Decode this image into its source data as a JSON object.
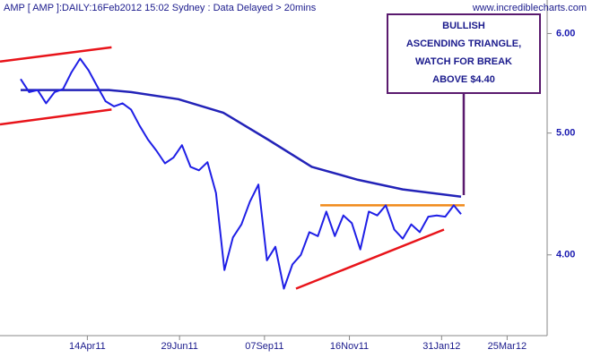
{
  "chart_data": {
    "type": "line",
    "title": "AMP [ AMP ]:DAILY:16Feb2012 15:02 Sydney : Data Delayed > 20mins",
    "watermark": "www.incrediblecharts.com",
    "log_scale": true,
    "xlim": [
      "2011-02-01",
      "2012-04-27"
    ],
    "xticks": [
      {
        "value": "2011-04-14",
        "label": "14Apr11"
      },
      {
        "value": "2011-06-29",
        "label": "29Jun11"
      },
      {
        "value": "2011-09-07",
        "label": "07Sep11"
      },
      {
        "value": "2011-11-16",
        "label": "16Nov11"
      },
      {
        "value": "2012-01-31",
        "label": "31Jan12"
      },
      {
        "value": "2012-03-25",
        "label": "25Mar12"
      }
    ],
    "ylim": [
      3.45,
      6.38
    ],
    "yticks": [
      {
        "value": 4,
        "label": "4.00"
      },
      {
        "value": 5,
        "label": "5.00"
      },
      {
        "value": 6,
        "label": "6.00"
      }
    ],
    "series": [
      {
        "color": "#1f1fe6",
        "width": 2,
        "x": [
          "2011-02-18",
          "2011-02-25",
          "2011-03-04",
          "2011-03-11",
          "2011-03-18",
          "2011-03-25",
          "2011-04-01",
          "2011-04-08",
          "2011-04-15",
          "2011-04-22",
          "2011-04-29",
          "2011-05-06",
          "2011-05-13",
          "2011-05-20",
          "2011-05-27",
          "2011-06-03",
          "2011-06-10",
          "2011-06-17",
          "2011-06-24",
          "2011-07-01",
          "2011-07-08",
          "2011-07-15",
          "2011-07-22",
          "2011-07-29",
          "2011-08-05",
          "2011-08-12",
          "2011-08-19",
          "2011-08-26",
          "2011-09-02",
          "2011-09-09",
          "2011-09-16",
          "2011-09-23",
          "2011-09-30",
          "2011-10-07",
          "2011-10-14",
          "2011-10-21",
          "2011-10-28",
          "2011-11-04",
          "2011-11-11",
          "2011-11-18",
          "2011-11-25",
          "2011-12-02",
          "2011-12-09",
          "2011-12-16",
          "2011-12-23",
          "2011-12-30",
          "2012-01-06",
          "2012-01-13",
          "2012-01-20",
          "2012-01-27",
          "2012-02-03",
          "2012-02-10",
          "2012-02-16"
        ],
        "values": [
          5.52,
          5.39,
          5.41,
          5.28,
          5.39,
          5.42,
          5.59,
          5.73,
          5.61,
          5.45,
          5.3,
          5.25,
          5.28,
          5.22,
          5.07,
          4.94,
          4.84,
          4.73,
          4.78,
          4.89,
          4.7,
          4.67,
          4.74,
          4.48,
          3.89,
          4.13,
          4.23,
          4.41,
          4.55,
          3.96,
          4.06,
          3.76,
          3.93,
          4.0,
          4.17,
          4.14,
          4.33,
          4.14,
          4.3,
          4.24,
          4.04,
          4.33,
          4.3,
          4.38,
          4.19,
          4.12,
          4.23,
          4.17,
          4.29,
          4.3,
          4.29,
          4.38,
          4.31
        ]
      },
      {
        "color": "#2323b8",
        "width": 2.5,
        "x": [
          "2011-02-18",
          "2011-04-15",
          "2011-05-02",
          "2011-05-20",
          "2011-06-28",
          "2011-08-04",
          "2011-09-10",
          "2011-10-16",
          "2011-11-23",
          "2011-12-30",
          "2012-02-16"
        ],
        "values": [
          5.41,
          5.41,
          5.41,
          5.39,
          5.32,
          5.19,
          4.94,
          4.7,
          4.59,
          4.51,
          4.45
        ]
      }
    ],
    "lines": [
      {
        "color": "#e8141a",
        "x": [
          "2011-02-01",
          "2011-05-04"
        ],
        "values": [
          5.7,
          5.85
        ]
      },
      {
        "color": "#e8141a",
        "x": [
          "2011-02-01",
          "2011-05-04"
        ],
        "values": [
          5.08,
          5.22
        ]
      },
      {
        "color": "#e8141a",
        "x": [
          "2011-10-03",
          "2012-02-02"
        ],
        "values": [
          3.76,
          4.19
        ]
      },
      {
        "color": "#f08a1a",
        "x": [
          "2011-10-23",
          "2012-02-19"
        ],
        "values": [
          4.38,
          4.38
        ]
      }
    ],
    "annotation": [
      "BULLISH",
      "ASCENDING TRIANGLE,",
      "WATCH FOR BREAK",
      "ABOVE $4.40"
    ]
  }
}
